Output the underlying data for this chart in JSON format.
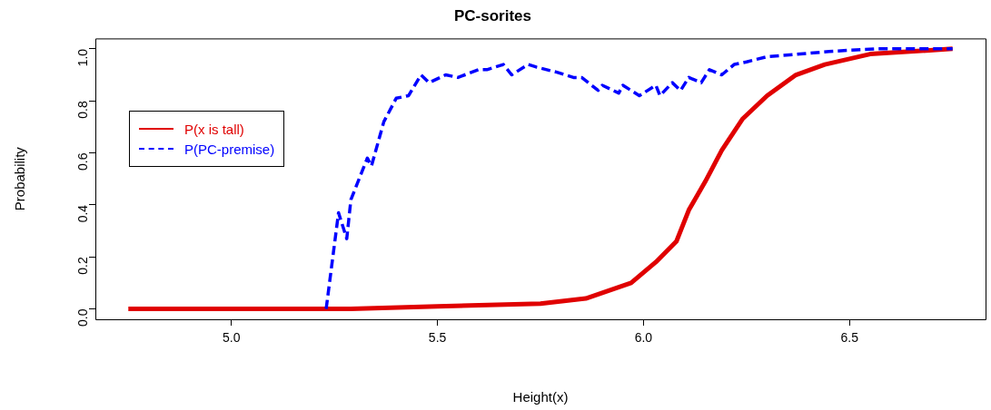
{
  "chart_data": {
    "type": "line",
    "title": "PC-sorites",
    "xlabel": "Height(x)",
    "ylabel": "Probability",
    "xlim": [
      4.67,
      6.83
    ],
    "xticks": [
      {
        "value": 5,
        "label": "5.0"
      },
      5.5,
      {
        "value": 6,
        "label": "6.0"
      },
      6.5
    ],
    "ylim": [
      -0.04,
      1.04
    ],
    "yticks": [
      {
        "value": 0,
        "label": "0.0"
      },
      0.2,
      0.4,
      0.6,
      0.8,
      {
        "value": 1,
        "label": "1.0"
      }
    ],
    "grid": false,
    "legend": "top left",
    "marker": "none",
    "series": [
      {
        "name": "P(x is tall)",
        "color": "#e00000",
        "line_style": "solid",
        "x": [
          4.75,
          5.29,
          5.5,
          5.75,
          5.86,
          5.97,
          6.03,
          6.08,
          6.11,
          6.15,
          6.19,
          6.24,
          6.3,
          6.37,
          6.44,
          6.55,
          6.75
        ],
        "values": [
          0,
          0,
          0.01,
          0.02,
          0.04,
          0.1,
          0.18,
          0.26,
          0.38,
          0.49,
          0.61,
          0.73,
          0.82,
          0.9,
          0.94,
          0.98,
          1
        ]
      },
      {
        "name": "P(PC-premise)",
        "color": "#0000ff",
        "line_style": "dashed",
        "x": [
          5.23,
          5.26,
          5.28,
          5.29,
          5.33,
          5.34,
          5.37,
          5.4,
          5.43,
          5.46,
          5.48,
          5.52,
          5.55,
          5.6,
          5.62,
          5.66,
          5.68,
          5.72,
          5.74,
          5.79,
          5.83,
          5.85,
          5.89,
          5.9,
          5.94,
          5.95,
          5.99,
          6.03,
          6.04,
          6.07,
          6.09,
          6.11,
          6.14,
          6.16,
          6.19,
          6.22,
          6.25,
          6.3,
          6.38,
          6.45,
          6.56,
          6.75
        ],
        "values": [
          0,
          0.37,
          0.27,
          0.42,
          0.58,
          0.55,
          0.72,
          0.81,
          0.82,
          0.9,
          0.87,
          0.9,
          0.89,
          0.92,
          0.92,
          0.94,
          0.9,
          0.94,
          0.93,
          0.91,
          0.89,
          0.89,
          0.84,
          0.86,
          0.83,
          0.86,
          0.82,
          0.86,
          0.82,
          0.87,
          0.84,
          0.89,
          0.87,
          0.92,
          0.9,
          0.94,
          0.95,
          0.97,
          0.98,
          0.99,
          1,
          1
        ]
      }
    ]
  }
}
